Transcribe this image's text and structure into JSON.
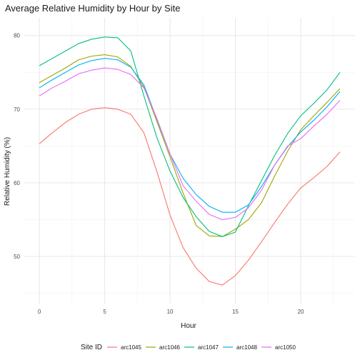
{
  "chart_data": {
    "type": "line",
    "title": "Average Relative Humidity by Hour by Site",
    "xlabel": "Hour",
    "ylabel": "Relative Humidity (%)",
    "xlim": [
      -1.15,
      24.15
    ],
    "ylim": [
      43.6,
      82.4
    ],
    "x_ticks": [
      0,
      5,
      10,
      15,
      20
    ],
    "y_ticks": [
      50,
      60,
      70,
      80
    ],
    "grid": true,
    "legend_title": "Site ID",
    "legend_position": "bottom",
    "x": [
      0,
      1,
      2,
      3,
      4,
      5,
      6,
      7,
      8,
      9,
      10,
      11,
      12,
      13,
      14,
      15,
      16,
      17,
      18,
      19,
      20,
      21,
      22,
      23
    ],
    "series": [
      {
        "name": "arc1045",
        "color": "#F8766D",
        "values": [
          65.3,
          66.8,
          68.2,
          69.3,
          70.0,
          70.2,
          70.0,
          69.3,
          66.8,
          61.5,
          55.6,
          51.2,
          48.4,
          46.6,
          46.1,
          47.4,
          49.5,
          52.0,
          54.6,
          57.1,
          59.3,
          60.7,
          62.2,
          64.2
        ]
      },
      {
        "name": "arc1046",
        "color": "#A3A500",
        "values": [
          73.6,
          74.6,
          75.6,
          76.7,
          77.2,
          77.4,
          77.1,
          75.8,
          73.0,
          68.3,
          63.5,
          58.6,
          54.2,
          52.8,
          52.7,
          53.7,
          55.0,
          57.3,
          60.9,
          64.3,
          67.2,
          69.1,
          70.9,
          72.8
        ]
      },
      {
        "name": "arc1047",
        "color": "#00BF7D",
        "values": [
          75.9,
          76.9,
          77.9,
          78.9,
          79.5,
          79.8,
          79.7,
          77.9,
          71.8,
          66.1,
          61.6,
          58.0,
          55.4,
          53.4,
          52.7,
          53.3,
          56.9,
          60.3,
          63.7,
          66.7,
          69.1,
          70.8,
          72.6,
          75.0
        ]
      },
      {
        "name": "arc1048",
        "color": "#00B0F6",
        "values": [
          72.9,
          74.0,
          75.0,
          76.0,
          76.6,
          76.9,
          76.7,
          75.7,
          73.3,
          68.6,
          63.9,
          60.6,
          58.4,
          56.8,
          56.0,
          56.0,
          57.0,
          59.5,
          62.4,
          64.9,
          66.9,
          68.5,
          70.3,
          72.4
        ]
      },
      {
        "name": "arc1050",
        "color": "#E76BF3",
        "values": [
          71.8,
          72.9,
          73.8,
          74.8,
          75.3,
          75.6,
          75.4,
          74.7,
          72.9,
          68.7,
          63.9,
          59.6,
          57.5,
          55.7,
          55.0,
          55.3,
          56.6,
          59.0,
          62.4,
          65.0,
          66.0,
          67.7,
          69.3,
          71.2
        ]
      }
    ]
  }
}
